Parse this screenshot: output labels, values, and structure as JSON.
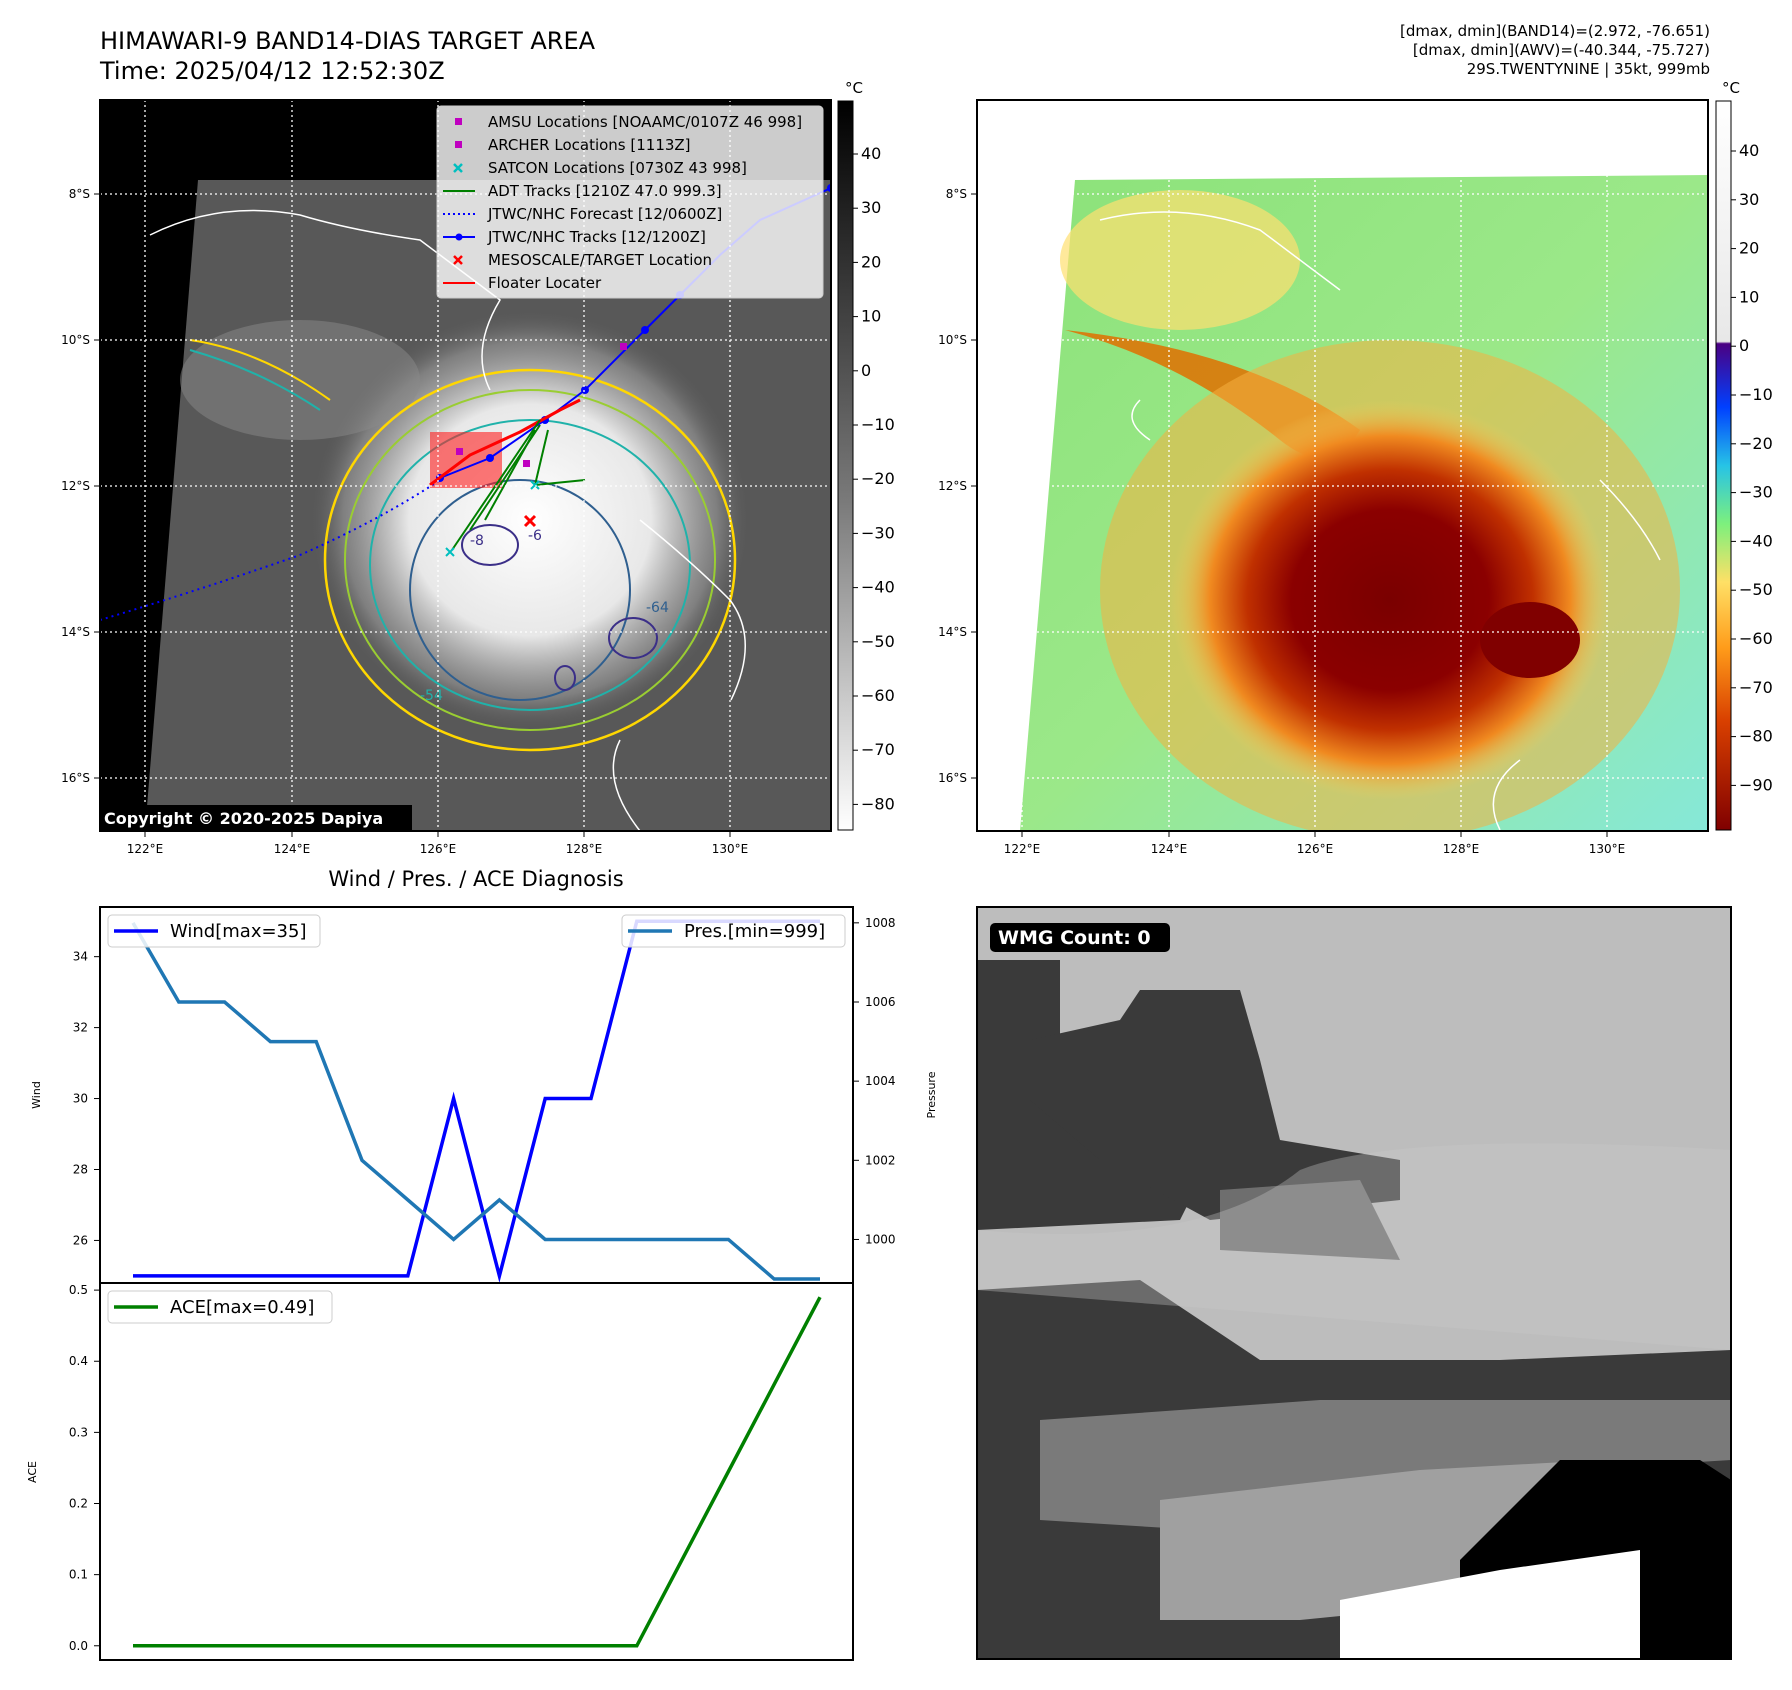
{
  "header": {
    "title_line1": "HIMAWARI-9 BAND14-DIAS TARGET AREA",
    "title_line2": "Time: 2025/04/12 12:52:30Z",
    "stats_line1": "[dmax, dmin](BAND14)=(2.972, -76.651)",
    "stats_line2": "[dmax, dmin](AWV)=(-40.344, -75.727)",
    "stats_line3": "29S.TWENTYNINE | 35kt, 999mb"
  },
  "map_ir": {
    "lon_ticks": [
      "122°E",
      "124°E",
      "126°E",
      "128°E",
      "130°E"
    ],
    "lat_ticks": [
      "8°S",
      "10°S",
      "12°S",
      "14°S",
      "16°S"
    ],
    "copyright": "Copyright © 2020-2025 Dapiya",
    "colorbar_unit": "°C",
    "colorbar_ticks": [
      "40",
      "30",
      "20",
      "10",
      "0",
      "−10",
      "−20",
      "−30",
      "−40",
      "−50",
      "−60",
      "−70",
      "−80"
    ],
    "legend": [
      {
        "label": "AMSU Locations [NOAAMC/0107Z 46 998]",
        "color": "#bf00bf",
        "marker": "square"
      },
      {
        "label": "ARCHER Locations [1113Z]",
        "color": "#bf00bf",
        "marker": "square"
      },
      {
        "label": "SATCON Locations [0730Z 43 998]",
        "color": "#00bfbf",
        "marker": "x"
      },
      {
        "label": "ADT Tracks [1210Z 47.0 999.3]",
        "color": "#008000",
        "marker": "line"
      },
      {
        "label": "JTWC/NHC Forecast [12/0600Z]",
        "color": "#0000ff",
        "marker": "dotted"
      },
      {
        "label": "JTWC/NHC Tracks [12/1200Z]",
        "color": "#0000ff",
        "marker": "line-dot"
      },
      {
        "label": "MESOSCALE/TARGET Location",
        "color": "#ff0000",
        "marker": "x"
      },
      {
        "label": "Floater Locater",
        "color": "#ff0000",
        "marker": "line"
      }
    ],
    "contour_labels": [
      "-8",
      "-6",
      "-64",
      "-54"
    ]
  },
  "map_awv": {
    "lon_ticks": [
      "122°E",
      "124°E",
      "126°E",
      "128°E",
      "130°E"
    ],
    "lat_ticks": [
      "8°S",
      "10°S",
      "12°S",
      "14°S",
      "16°S"
    ],
    "colorbar_unit": "°C",
    "colorbar_ticks": [
      "40",
      "30",
      "20",
      "10",
      "0",
      "−10",
      "−20",
      "−30",
      "−40",
      "−50",
      "−60",
      "−70",
      "−80",
      "−90"
    ]
  },
  "wmg": {
    "label": "WMG Count: 0"
  },
  "chart_data": [
    {
      "type": "line",
      "title": "Wind / Pres. / ACE Diagnosis",
      "ylabel": "Wind",
      "ylabel_right": "Pressure",
      "ylim": [
        24.8,
        35.4
      ],
      "ylim_right": [
        998.9,
        1008.4
      ],
      "yticks": [
        26,
        28,
        30,
        32,
        34
      ],
      "yticks_right": [
        1000,
        1002,
        1004,
        1006,
        1008
      ],
      "x": [
        0,
        1,
        2,
        3,
        4,
        5,
        6,
        7,
        8,
        9,
        10,
        11,
        12,
        13,
        14,
        15
      ],
      "series": [
        {
          "name": "Wind[max=35]",
          "axis": "left",
          "color": "#0000ff",
          "values": [
            25,
            25,
            25,
            25,
            25,
            25,
            25,
            30,
            25,
            30,
            30,
            35,
            35,
            35,
            35,
            35
          ]
        },
        {
          "name": "Pres.[min=999]",
          "axis": "right",
          "color": "#1f77b4",
          "values": [
            1008,
            1006,
            1006,
            1005,
            1005,
            1002,
            1001,
            1000,
            1001,
            1000,
            1000,
            1000,
            1000,
            1000,
            999,
            999
          ]
        }
      ]
    },
    {
      "type": "line",
      "ylabel": "ACE",
      "ylim": [
        -0.02,
        0.51
      ],
      "yticks": [
        "0.0",
        "0.1",
        "0.2",
        "0.3",
        "0.4",
        "0.5"
      ],
      "x": [
        0,
        1,
        2,
        3,
        4,
        5,
        6,
        7,
        8,
        9,
        10,
        11,
        12,
        13,
        14,
        15
      ],
      "series": [
        {
          "name": "ACE[max=0.49]",
          "color": "#008000",
          "values": [
            0,
            0,
            0,
            0,
            0,
            0,
            0,
            0,
            0,
            0,
            0,
            0.0,
            0.1225,
            0.245,
            0.3675,
            0.49
          ]
        }
      ]
    }
  ]
}
